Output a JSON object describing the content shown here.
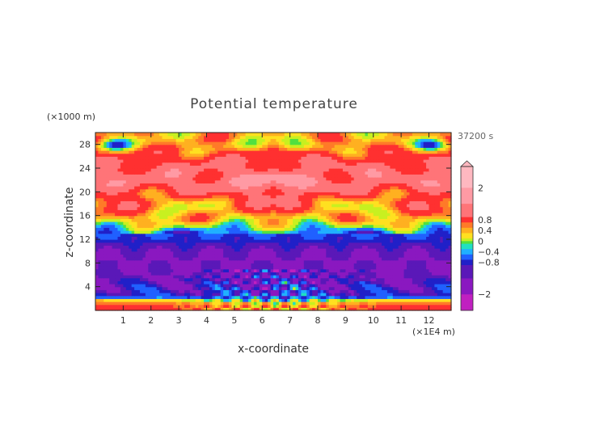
{
  "chart_data": {
    "type": "heatmap",
    "title": "Potential temperature",
    "xlabel": "x-coordinate",
    "ylabel": "z-coordinate",
    "x_unit": "(×1E4 m)",
    "y_unit": "(×1000 m)",
    "time_label": "37200 s",
    "xlim": [
      0,
      12.8
    ],
    "ylim": [
      0,
      30
    ],
    "x_ticks": [
      1,
      2,
      3,
      4,
      5,
      6,
      7,
      8,
      9,
      10,
      11,
      12
    ],
    "y_ticks": [
      4,
      8,
      12,
      16,
      20,
      24,
      28
    ],
    "colorbar": {
      "labels": [
        "2",
        "0.8",
        "0.4",
        "0",
        "−0.4",
        "−0.8",
        "−2"
      ],
      "label_values": [
        2,
        0.8,
        0.4,
        0,
        -0.4,
        -0.8,
        -2
      ],
      "levels": [
        {
          "value": 2.8,
          "color": "#ffb8c0"
        },
        {
          "value": 2.0,
          "color": "#ff9aa4"
        },
        {
          "value": 1.4,
          "color": "#ff7478"
        },
        {
          "value": 0.9,
          "color": "#ff3030"
        },
        {
          "value": 0.7,
          "color": "#ff7a28"
        },
        {
          "value": 0.5,
          "color": "#ffb020"
        },
        {
          "value": 0.3,
          "color": "#ffe020"
        },
        {
          "value": 0.1,
          "color": "#c8f020"
        },
        {
          "value": 0.0,
          "color": "#50e040"
        },
        {
          "value": -0.1,
          "color": "#20e0c0"
        },
        {
          "value": -0.3,
          "color": "#20b0ff"
        },
        {
          "value": -0.5,
          "color": "#2060ff"
        },
        {
          "value": -0.7,
          "color": "#2020c8"
        },
        {
          "value": -0.9,
          "color": "#5a18b8"
        },
        {
          "value": -1.4,
          "color": "#8a18c0"
        },
        {
          "value": -2.0,
          "color": "#c020c0"
        },
        {
          "value": -2.6,
          "color": "#ff40c0"
        }
      ]
    },
    "field_description_values": {
      "z_layers": [
        {
          "z": 1,
          "value": 0.6
        },
        {
          "z": 2.5,
          "value": -0.6
        },
        {
          "z": 4,
          "value": -0.75
        },
        {
          "z": 7,
          "value": -0.95
        },
        {
          "z": 10,
          "value": -0.9
        },
        {
          "z": 13,
          "value": -0.45
        },
        {
          "z": 15,
          "value": 0.5
        },
        {
          "z": 18,
          "value": 1.2
        },
        {
          "z": 22,
          "value": 1.7
        },
        {
          "z": 25,
          "value": 1.4
        },
        {
          "z": 28,
          "value": 0.6
        }
      ]
    }
  }
}
